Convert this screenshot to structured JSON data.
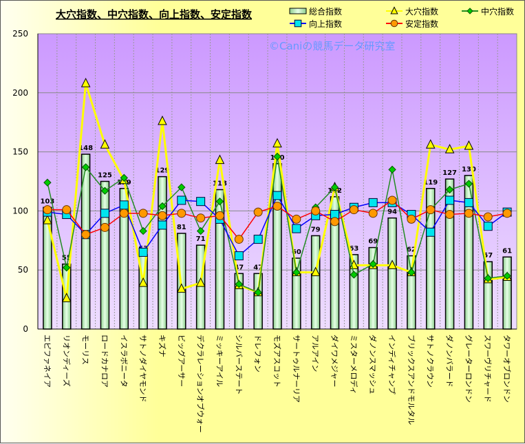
{
  "chart_data": {
    "type": "bar+line",
    "title": "大穴指数、中穴指数、向上指数、安定指数",
    "watermark": "©Caniの競馬データ研究室",
    "ylim": [
      0,
      250
    ],
    "yticks": [
      0,
      50,
      100,
      150,
      200,
      250
    ],
    "grid": true,
    "legend_position": "top-right",
    "categories": [
      "エピファネイア",
      "リオンディーズ",
      "モーリス",
      "ロードカナロア",
      "イスラボニータ",
      "サトノダイヤモンド",
      "キズナ",
      "ビッグアーサー",
      "デクラレーションオブウォー",
      "ミッキーアイル",
      "シルバーステート",
      "ドレフォン",
      "モズアスコット",
      "サートゥルナーリア",
      "アルアイン",
      "ダイワメジャー",
      "ミスターメロディ",
      "ダノンスマッシュ",
      "インディチャンプ",
      "ブリックスアンドモルタル",
      "サトノクラウン",
      "ダノンバラード",
      "グレーターロンドン",
      "スワーヴリチャード",
      "タワーオブロンドン"
    ],
    "series": [
      {
        "name": "総合指数",
        "type": "bar",
        "color": "#b8e6b8",
        "values": [
          103,
          55,
          148,
          125,
          119,
          63,
          129,
          81,
          71,
          118,
          47,
          47,
          140,
          60,
          79,
          112,
          63,
          69,
          94,
          62,
          119,
          127,
          130,
          57,
          61
        ]
      },
      {
        "name": "大穴指数",
        "type": "line",
        "color": "#ffff00",
        "marker": "triangle",
        "values": [
          92,
          26,
          208,
          156,
          126,
          39,
          176,
          34,
          39,
          143,
          37,
          31,
          157,
          48,
          48,
          120,
          54,
          54,
          54,
          48,
          156,
          152,
          155,
          42,
          44
        ]
      },
      {
        "name": "中穴指数",
        "type": "line",
        "color": "#228b22",
        "marker": "diamond",
        "values": [
          124,
          52,
          137,
          117,
          128,
          83,
          104,
          120,
          83,
          108,
          38,
          31,
          146,
          48,
          103,
          120,
          46,
          55,
          135,
          48,
          101,
          118,
          123,
          43,
          45
        ]
      },
      {
        "name": "向上指数",
        "type": "line",
        "color": "#0000ff",
        "marker": "square",
        "values": [
          99,
          97,
          80,
          98,
          105,
          65,
          88,
          109,
          108,
          93,
          62,
          76,
          113,
          85,
          96,
          97,
          103,
          107,
          107,
          97,
          82,
          109,
          107,
          87,
          99
        ]
      },
      {
        "name": "安定指数",
        "type": "line",
        "color": "#ff0000",
        "marker": "circle",
        "values": [
          101,
          101,
          80,
          86,
          98,
          98,
          96,
          98,
          94,
          96,
          76,
          99,
          104,
          93,
          100,
          91,
          101,
          98,
          109,
          93,
          101,
          97,
          98,
          95,
          98
        ]
      }
    ]
  }
}
